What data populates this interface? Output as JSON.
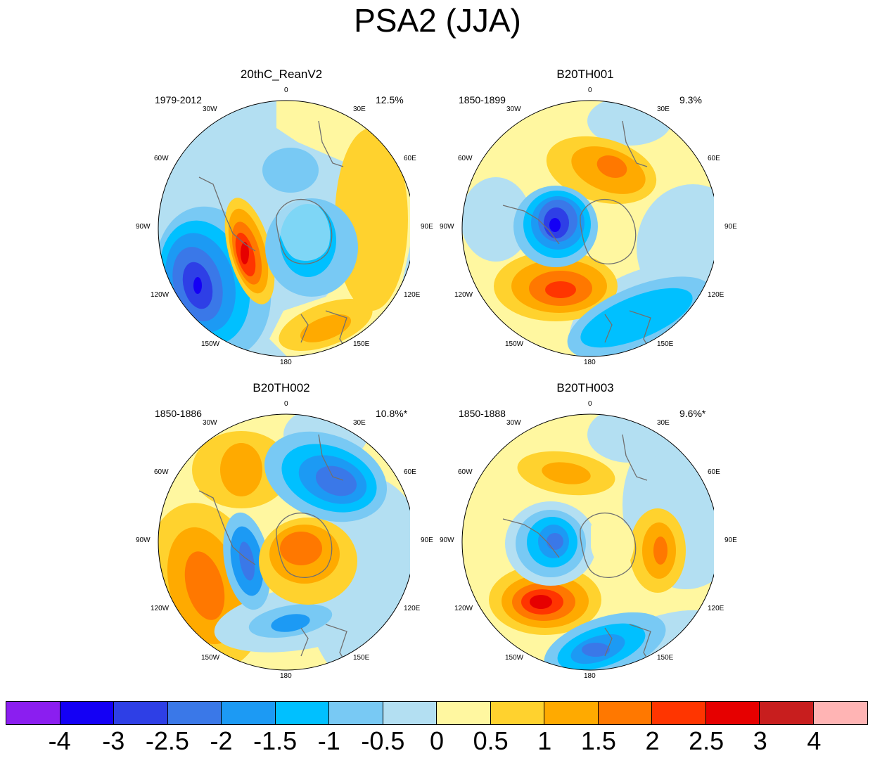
{
  "title": "PSA2 (JJA)",
  "longitude_labels": {
    "n0": "0",
    "e30": "30E",
    "e60": "60E",
    "e90": "90E",
    "e120": "120E",
    "e150": "150E",
    "s180": "180",
    "w150": "150W",
    "w120": "120W",
    "w90": "90W",
    "w60": "60W",
    "w30": "30W"
  },
  "panels": [
    {
      "name": "20thC_ReanV2",
      "period": "1979-2012",
      "variance": "12.5%"
    },
    {
      "name": "B20TH001",
      "period": "1850-1899",
      "variance": "9.3%"
    },
    {
      "name": "B20TH002",
      "period": "1850-1886",
      "variance": "10.8%*"
    },
    {
      "name": "B20TH003",
      "period": "1850-1888",
      "variance": "9.6%*"
    }
  ],
  "colorbar": {
    "colors": [
      "#8b1ef0",
      "#1400f5",
      "#2e3fe6",
      "#3a78e8",
      "#1c9af4",
      "#00c0ff",
      "#78c9f4",
      "#b3dff2",
      "#fff7a0",
      "#ffd22e",
      "#ffaa00",
      "#ff7800",
      "#ff3500",
      "#e60000",
      "#c81e1e",
      "#ffb4b4"
    ],
    "labels": [
      "-4",
      "-3",
      "-2.5",
      "-2",
      "-1.5",
      "-1",
      "-0.5",
      "0",
      "0.5",
      "1",
      "1.5",
      "2",
      "2.5",
      "3",
      "4"
    ]
  },
  "legend_colors": {
    "ocean_zero": "#b3dff2",
    "coast": "#707070"
  }
}
